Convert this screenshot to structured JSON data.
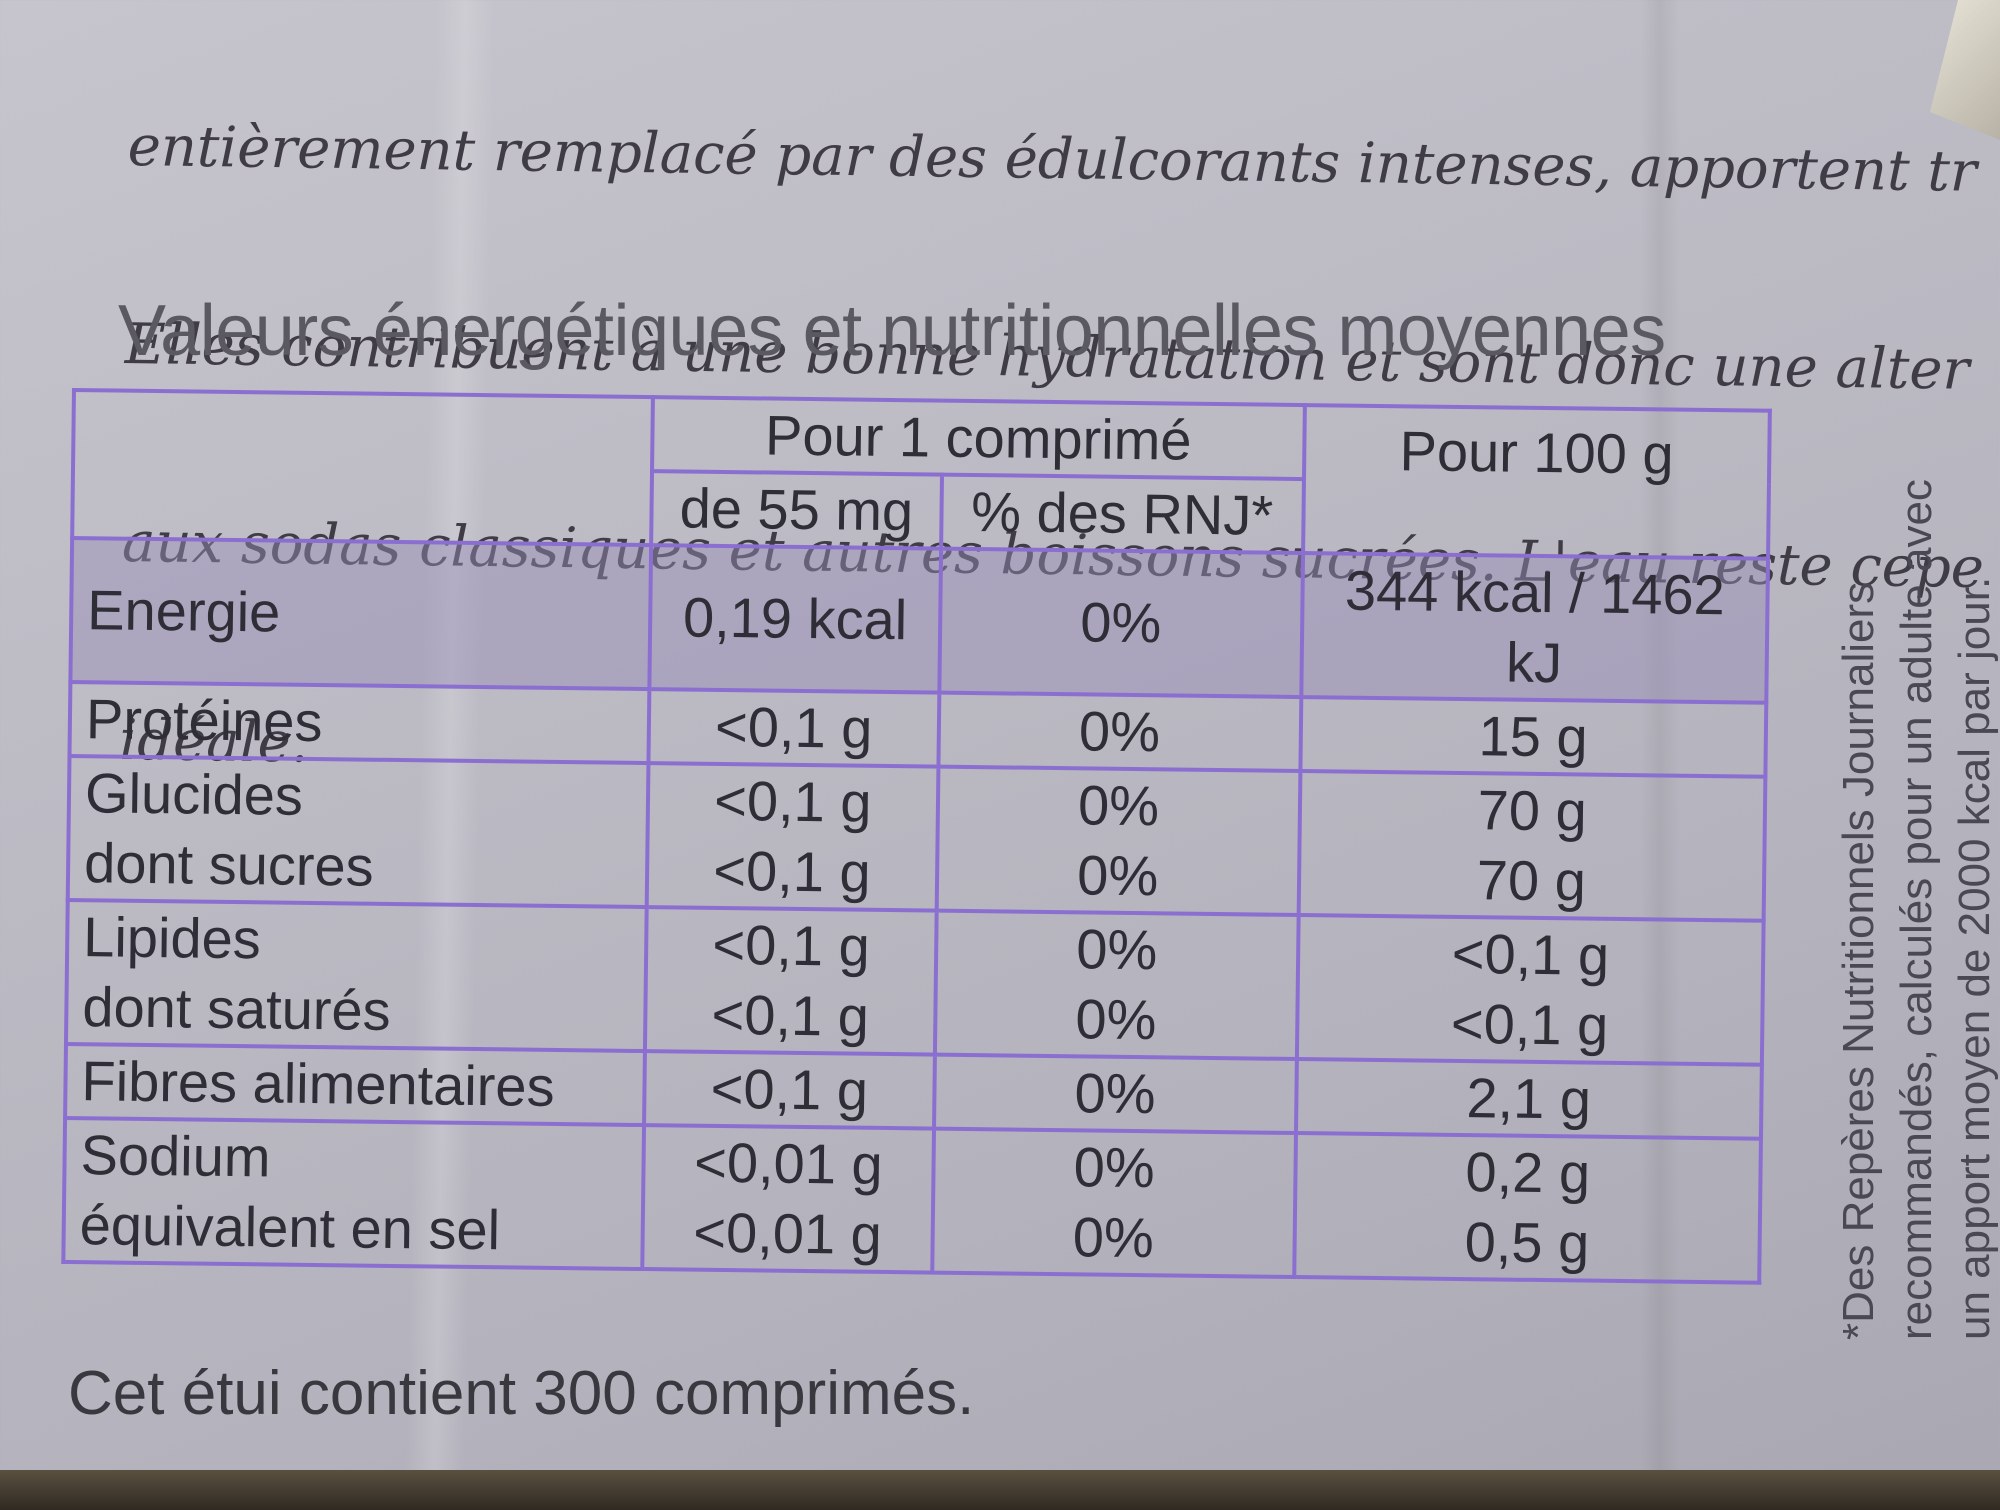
{
  "intro_lines": [
    "entièrement remplacé par des édulcorants intenses, apportent tr",
    "Elles contribuent à une bonne hydratation et sont donc une alter",
    "aux sodas classiques et autres boissons sucrées. L'eau reste cepe",
    "idéale."
  ],
  "heading": "Valeurs énergétiques et nutritionnelles moyennes",
  "table": {
    "header": {
      "per_tablet": "Pour 1 comprimé",
      "per_100g": "Pour 100 g",
      "mass": "de 55 mg",
      "rnj": "% des RNJ*"
    },
    "rows": [
      {
        "labels": [
          "Energie"
        ],
        "tablet": [
          "0,19 kcal"
        ],
        "rnj": [
          "0%"
        ],
        "per100": [
          "344 kcal / 1462 kJ"
        ]
      },
      {
        "labels": [
          "Protéines"
        ],
        "tablet": [
          "<0,1 g"
        ],
        "rnj": [
          "0%"
        ],
        "per100": [
          "15 g"
        ]
      },
      {
        "labels": [
          "Glucides",
          "dont sucres"
        ],
        "tablet": [
          "<0,1 g",
          "<0,1 g"
        ],
        "rnj": [
          "0%",
          "0%"
        ],
        "per100": [
          "70 g",
          "70 g"
        ]
      },
      {
        "labels": [
          "Lipides",
          "dont saturés"
        ],
        "tablet": [
          "<0,1 g",
          "<0,1 g"
        ],
        "rnj": [
          "0%",
          "0%"
        ],
        "per100": [
          "<0,1 g",
          "<0,1 g"
        ]
      },
      {
        "labels": [
          "Fibres alimentaires"
        ],
        "tablet": [
          "<0,1 g"
        ],
        "rnj": [
          "0%"
        ],
        "per100": [
          "2,1 g"
        ]
      },
      {
        "labels": [
          "Sodium",
          "équivalent en sel"
        ],
        "tablet": [
          "<0,01 g",
          "<0,01 g"
        ],
        "rnj": [
          "0%",
          "0%"
        ],
        "per100": [
          "0,2 g",
          "0,5 g"
        ]
      }
    ]
  },
  "footer": "Cet étui contient 300 comprimés.",
  "side_note_lines": [
    "*Des Repères Nutritionnels Journaliers",
    "recommandés, calculés pour un adulte avec",
    "un apport moyen de 2000 kcal par jour."
  ],
  "colors": {
    "table_border": "#8a6fd1",
    "energy_row": "#9b92bb"
  }
}
